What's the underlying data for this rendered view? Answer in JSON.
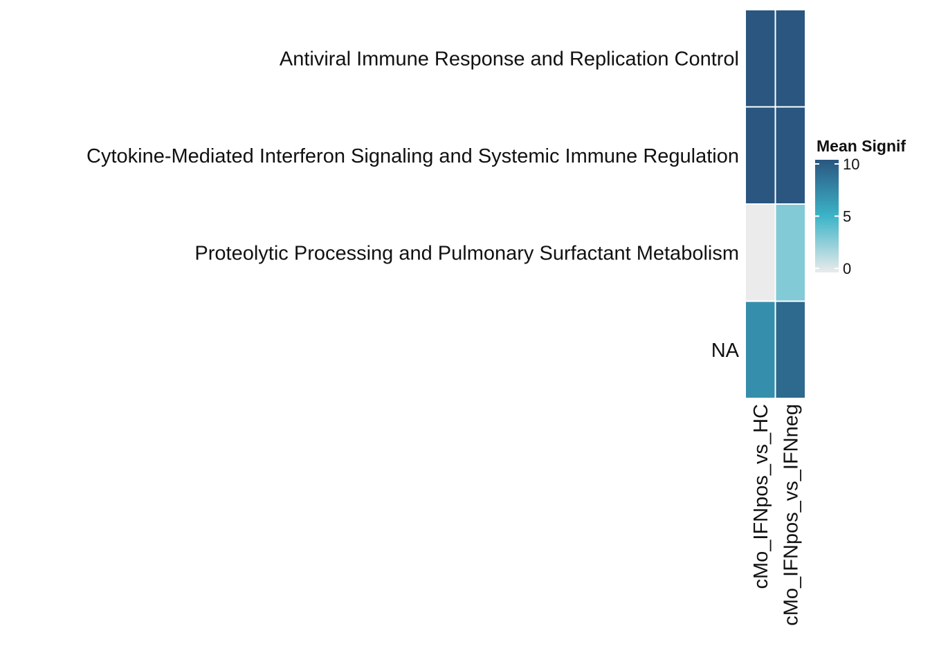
{
  "chart_data": {
    "type": "heatmap",
    "rows": [
      "Antiviral Immune Response and Replication Control",
      "Cytokine-Mediated Interferon Signaling and Systemic Immune Regulation",
      "Proteolytic Processing and Pulmonary Surfactant Metabolism",
      "NA"
    ],
    "columns": [
      "cMo_IFNpos_vs_HC",
      "cMo_IFNpos_vs_IFNneg"
    ],
    "values": [
      [
        10,
        10
      ],
      [
        10,
        10
      ],
      [
        0,
        3
      ],
      [
        7,
        9
      ]
    ],
    "color_scale": {
      "limits": [
        0,
        10
      ],
      "stops": [
        {
          "value": 0,
          "color": "#ebebeb"
        },
        {
          "value": 5,
          "color": "#3cb4c8"
        },
        {
          "value": 10,
          "color": "#2a5680"
        }
      ]
    },
    "legend": {
      "title": "Mean Signif",
      "ticks": [
        0,
        5,
        10
      ],
      "tick_labels": [
        "0",
        "5",
        "10"
      ],
      "placement": "right"
    },
    "colors": {
      "cell_border": "#ffffff"
    },
    "grid": false
  }
}
